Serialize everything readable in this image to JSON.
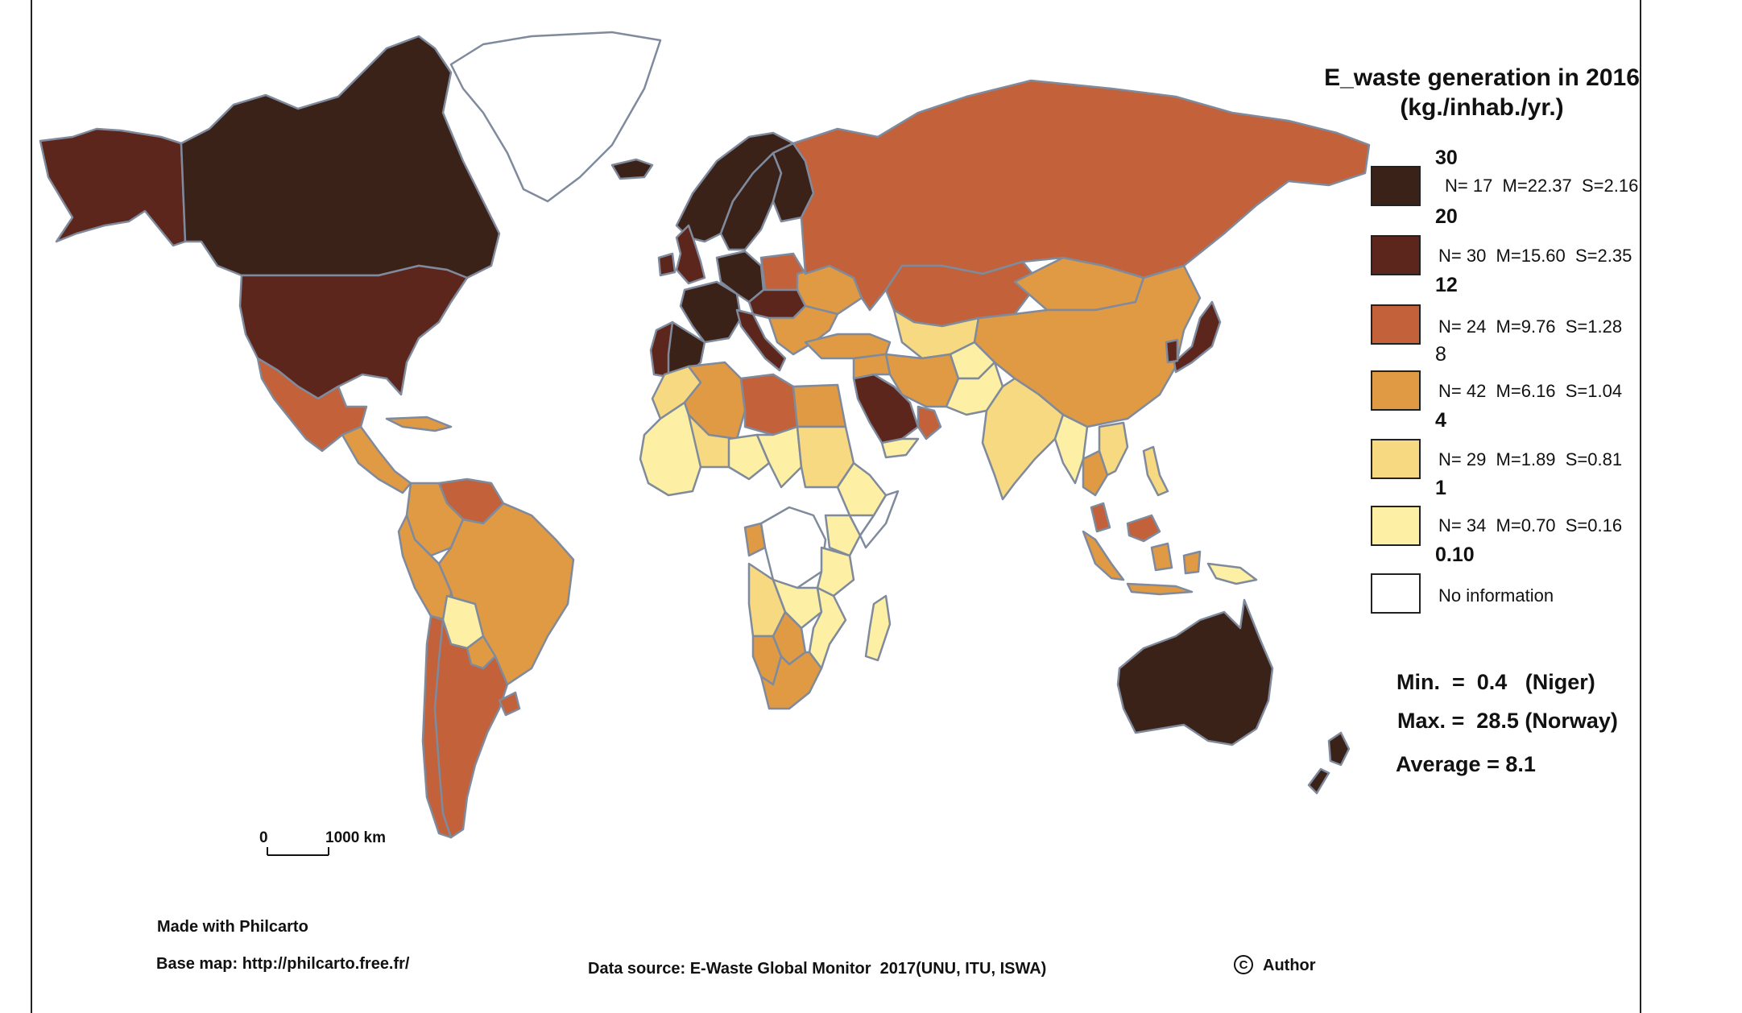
{
  "legend": {
    "title": "E_waste generation in 2016",
    "subtitle": "(kg./inhab./yr.)",
    "breaks": [
      "30",
      "20",
      "12",
      "8",
      "4",
      "1",
      "0.10"
    ],
    "classes": [
      {
        "stat": "N= 17  M=22.37  S=2.16",
        "color": "#3b2219"
      },
      {
        "stat": "N= 30  M=15.60  S=2.35",
        "color": "#5c261c"
      },
      {
        "stat": "N= 24  M=9.76  S=1.28",
        "color": "#c2613a"
      },
      {
        "stat": "N= 42  M=6.16  S=1.04",
        "color": "#e09a44"
      },
      {
        "stat": "N= 29  M=1.89  S=0.81",
        "color": "#f7d982"
      },
      {
        "stat": "N= 34  M=0.70  S=0.16",
        "color": "#fdf0a4"
      },
      {
        "stat": "No information",
        "color": "#ffffff"
      }
    ]
  },
  "summary": {
    "min": "Min.  =  0.4   (Niger)",
    "max": "Max. =  28.5 (Norway)",
    "average": "Average = 8.1"
  },
  "scale_bar": {
    "start": "0",
    "end": "1000 km"
  },
  "footer": {
    "made_with": "Made with Philcarto",
    "base_map": "Base map: http://philcarto.free.fr/",
    "data_source": "Data source: E-Waste Global Monitor  2017(UNU, ITU, ISWA)",
    "copyright_symbol": "C",
    "author": "Author"
  },
  "colors": {
    "class_1_30": "#3b2219",
    "class_2_20": "#5c261c",
    "class_3_12": "#c2613a",
    "class_4_8": "#e09a44",
    "class_5_4": "#f7d982",
    "class_6_1": "#fdf0a4",
    "no_info": "#ffffff",
    "border": "#7f8a9c"
  },
  "regions": [
    {
      "name": "Alaska",
      "class": "class_2_20"
    },
    {
      "name": "Canada",
      "class": "class_1_30"
    },
    {
      "name": "Greenland",
      "class": "no_info"
    },
    {
      "name": "United States",
      "class": "class_2_20"
    },
    {
      "name": "Mexico",
      "class": "class_3_12"
    },
    {
      "name": "Central America",
      "class": "class_4_8"
    },
    {
      "name": "Cuba",
      "class": "class_4_8"
    },
    {
      "name": "Venezuela",
      "class": "class_3_12"
    },
    {
      "name": "Colombia",
      "class": "class_4_8"
    },
    {
      "name": "Brazil",
      "class": "class_4_8"
    },
    {
      "name": "Peru",
      "class": "class_4_8"
    },
    {
      "name": "Bolivia",
      "class": "class_6_1"
    },
    {
      "name": "Paraguay",
      "class": "class_4_8"
    },
    {
      "name": "Chile",
      "class": "class_3_12"
    },
    {
      "name": "Argentina",
      "class": "class_3_12"
    },
    {
      "name": "Uruguay",
      "class": "class_3_12"
    },
    {
      "name": "Iceland",
      "class": "class_1_30"
    },
    {
      "name": "Norway",
      "class": "class_1_30"
    },
    {
      "name": "Sweden",
      "class": "class_1_30"
    },
    {
      "name": "Finland",
      "class": "class_1_30"
    },
    {
      "name": "United Kingdom",
      "class": "class_2_20"
    },
    {
      "name": "Ireland",
      "class": "class_2_20"
    },
    {
      "name": "France",
      "class": "class_1_30"
    },
    {
      "name": "Spain",
      "class": "class_1_30"
    },
    {
      "name": "Portugal",
      "class": "class_2_20"
    },
    {
      "name": "Germany",
      "class": "class_1_30"
    },
    {
      "name": "Italy",
      "class": "class_2_20"
    },
    {
      "name": "Poland",
      "class": "class_3_12"
    },
    {
      "name": "Central Europe",
      "class": "class_2_20"
    },
    {
      "name": "Ukraine",
      "class": "class_4_8"
    },
    {
      "name": "Balkans",
      "class": "class_4_8"
    },
    {
      "name": "Turkey",
      "class": "class_4_8"
    },
    {
      "name": "Russia",
      "class": "class_3_12"
    },
    {
      "name": "Kazakhstan",
      "class": "class_3_12"
    },
    {
      "name": "Central Asia",
      "class": "class_5_4"
    },
    {
      "name": "Mongolia",
      "class": "class_4_8"
    },
    {
      "name": "China",
      "class": "class_4_8"
    },
    {
      "name": "Japan",
      "class": "class_2_20"
    },
    {
      "name": "South Korea",
      "class": "class_2_20"
    },
    {
      "name": "Iran",
      "class": "class_4_8"
    },
    {
      "name": "Afghanistan",
      "class": "class_6_1"
    },
    {
      "name": "Pakistan",
      "class": "class_6_1"
    },
    {
      "name": "India",
      "class": "class_5_4"
    },
    {
      "name": "Myanmar",
      "class": "class_6_1"
    },
    {
      "name": "Thailand",
      "class": "class_4_8"
    },
    {
      "name": "Vietnam",
      "class": "class_5_4"
    },
    {
      "name": "Malaysia",
      "class": "class_3_12"
    },
    {
      "name": "Indonesia",
      "class": "class_4_8"
    },
    {
      "name": "Philippines",
      "class": "class_5_4"
    },
    {
      "name": "Papua New Guinea",
      "class": "class_6_1"
    },
    {
      "name": "Saudi Arabia",
      "class": "class_2_20"
    },
    {
      "name": "Oman",
      "class": "class_3_12"
    },
    {
      "name": "Yemen",
      "class": "class_6_1"
    },
    {
      "name": "Iraq",
      "class": "class_4_8"
    },
    {
      "name": "Morocco",
      "class": "class_5_4"
    },
    {
      "name": "Algeria",
      "class": "class_4_8"
    },
    {
      "name": "Libya",
      "class": "class_3_12"
    },
    {
      "name": "Egypt",
      "class": "class_4_8"
    },
    {
      "name": "West Africa",
      "class": "class_6_1"
    },
    {
      "name": "Mali",
      "class": "class_5_4"
    },
    {
      "name": "Niger",
      "class": "class_6_1"
    },
    {
      "name": "Chad",
      "class": "class_6_1"
    },
    {
      "name": "Sudan",
      "class": "class_5_4"
    },
    {
      "name": "Ethiopia",
      "class": "class_6_1"
    },
    {
      "name": "Somalia",
      "class": "no_info"
    },
    {
      "name": "Gabon",
      "class": "class_4_8"
    },
    {
      "name": "DR Congo",
      "class": "no_info"
    },
    {
      "name": "Kenya",
      "class": "class_6_1"
    },
    {
      "name": "Tanzania",
      "class": "class_6_1"
    },
    {
      "name": "Angola",
      "class": "class_5_4"
    },
    {
      "name": "Zambia",
      "class": "class_6_1"
    },
    {
      "name": "Mozambique",
      "class": "class_6_1"
    },
    {
      "name": "Namibia",
      "class": "class_4_8"
    },
    {
      "name": "Botswana",
      "class": "class_4_8"
    },
    {
      "name": "South Africa",
      "class": "class_4_8"
    },
    {
      "name": "Madagascar",
      "class": "class_6_1"
    },
    {
      "name": "Australia",
      "class": "class_1_30"
    },
    {
      "name": "New Zealand",
      "class": "class_1_30"
    }
  ]
}
